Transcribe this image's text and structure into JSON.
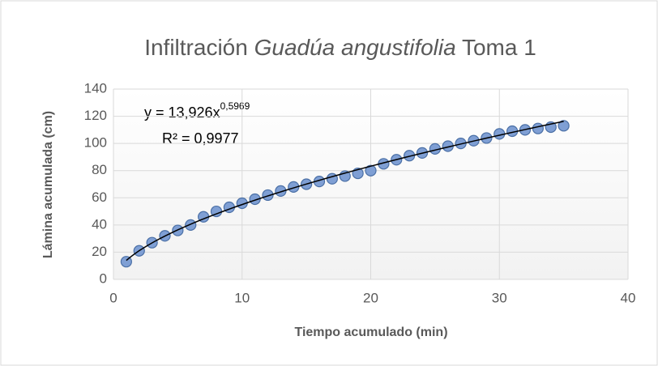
{
  "chart_data": {
    "type": "scatter",
    "title_parts": [
      "Infiltración",
      "Guadúa angustifolia",
      "Toma 1"
    ],
    "x_label": "Tiempo acumulado (min)",
    "y_label": "Lámina acumulada (cm)",
    "x": [
      1,
      2,
      3,
      4,
      5,
      6,
      7,
      8,
      9,
      10,
      11,
      12,
      13,
      14,
      15,
      16,
      17,
      18,
      19,
      20,
      21,
      22,
      23,
      24,
      25,
      26,
      27,
      28,
      29,
      30,
      31,
      32,
      33,
      34,
      35
    ],
    "values": [
      13,
      21,
      27,
      32,
      36,
      40,
      46,
      50,
      53,
      56,
      59,
      62,
      65,
      68,
      70,
      72,
      74,
      76,
      78,
      80,
      85,
      88,
      91,
      93,
      96,
      98,
      100,
      102,
      104,
      107,
      109,
      110,
      111,
      112,
      113
    ],
    "color": "#7f9fd4",
    "xlim": [
      0,
      40
    ],
    "xticks": [
      0,
      10,
      20,
      30,
      40
    ],
    "ylim": [
      0,
      140
    ],
    "yticks": [
      0,
      20,
      40,
      60,
      80,
      100,
      120,
      140
    ],
    "grid": true,
    "trendline": {
      "type": "power",
      "coefficient": 13.926,
      "exponent": 0.5969,
      "r_squared": 0.9977,
      "equation": "y = 13,926x",
      "exponent_label": "0,5969",
      "r_squared_label": "R² = 0,9977",
      "color": "#000000"
    }
  }
}
